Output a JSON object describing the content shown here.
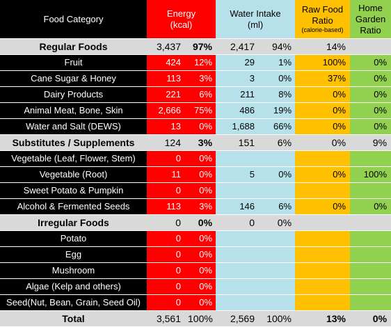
{
  "header": {
    "category": "Food Category",
    "energy_line1": "Energy",
    "energy_line2": "(kcal)",
    "water_line1": "Water Intake",
    "water_line2": "(ml)",
    "raw_line1": "Raw Food",
    "raw_line2": "Ratio",
    "raw_line3": "(calorie-based)",
    "home_line1": "Home",
    "home_line2": "Garden",
    "home_line3": "Ratio"
  },
  "rows": [
    {
      "type": "group",
      "category": "Regular Foods",
      "energy": "3,437",
      "energy_pct": "97%",
      "water": "2,417",
      "water_pct": "94%",
      "raw": "14%",
      "home": ""
    },
    {
      "type": "item",
      "category": "Fruit",
      "energy": "424",
      "energy_pct": "12%",
      "water": "29",
      "water_pct": "1%",
      "raw": "100%",
      "home": "0%"
    },
    {
      "type": "item",
      "category": "Cane Sugar & Honey",
      "energy": "113",
      "energy_pct": "3%",
      "water": "3",
      "water_pct": "0%",
      "raw": "37%",
      "home": "0%"
    },
    {
      "type": "item",
      "category": "Dairy Products",
      "energy": "221",
      "energy_pct": "6%",
      "water": "211",
      "water_pct": "8%",
      "raw": "0%",
      "home": "0%"
    },
    {
      "type": "item",
      "category": "Animal Meat, Bone, Skin",
      "energy": "2,666",
      "energy_pct": "75%",
      "water": "486",
      "water_pct": "19%",
      "raw": "0%",
      "home": "0%"
    },
    {
      "type": "item",
      "category": "Water and Salt (DEWS)",
      "energy": "13",
      "energy_pct": "0%",
      "water": "1,688",
      "water_pct": "66%",
      "raw": "0%",
      "home": "0%"
    },
    {
      "type": "group",
      "category": "Substitutes / Supplements",
      "energy": "124",
      "energy_pct": "3%",
      "water": "151",
      "water_pct": "6%",
      "raw": "0%",
      "home": "9%"
    },
    {
      "type": "item",
      "category": "Vegetable (Leaf, Flower, Stem)",
      "energy": "0",
      "energy_pct": "0%",
      "water": "",
      "water_pct": "",
      "raw": "",
      "home": ""
    },
    {
      "type": "item",
      "category": "Vegetable (Root)",
      "energy": "11",
      "energy_pct": "0%",
      "water": "5",
      "water_pct": "0%",
      "raw": "0%",
      "home": "100%"
    },
    {
      "type": "item",
      "category": "Sweet Potato & Pumpkin",
      "energy": "0",
      "energy_pct": "0%",
      "water": "",
      "water_pct": "",
      "raw": "",
      "home": ""
    },
    {
      "type": "item",
      "category": "Alcohol & Fermented Seeds",
      "energy": "113",
      "energy_pct": "3%",
      "water": "146",
      "water_pct": "6%",
      "raw": "0%",
      "home": "0%"
    },
    {
      "type": "group",
      "category": "Irregular Foods",
      "energy": "0",
      "energy_pct": "0%",
      "water": "0",
      "water_pct": "0%",
      "raw": "",
      "home": ""
    },
    {
      "type": "item",
      "category": "Potato",
      "energy": "0",
      "energy_pct": "0%",
      "water": "",
      "water_pct": "",
      "raw": "",
      "home": ""
    },
    {
      "type": "item",
      "category": "Egg",
      "energy": "0",
      "energy_pct": "0%",
      "water": "",
      "water_pct": "",
      "raw": "",
      "home": ""
    },
    {
      "type": "item",
      "category": "Mushroom",
      "energy": "0",
      "energy_pct": "0%",
      "water": "",
      "water_pct": "",
      "raw": "",
      "home": ""
    },
    {
      "type": "item",
      "category": "Algae (Kelp and others)",
      "energy": "0",
      "energy_pct": "0%",
      "water": "",
      "water_pct": "",
      "raw": "",
      "home": ""
    },
    {
      "type": "item",
      "category": "Seed(Nut, Bean, Grain, Seed Oil)",
      "energy": "0",
      "energy_pct": "0%",
      "water": "",
      "water_pct": "",
      "raw": "",
      "home": ""
    },
    {
      "type": "total",
      "category": "Total",
      "energy": "3,561",
      "energy_pct": "100%",
      "water": "2,569",
      "water_pct": "100%",
      "raw": "13%",
      "home": "0%"
    }
  ],
  "colors": {
    "category_bg": "#000000",
    "energy_bg": "#ff0000",
    "water_bg": "#b7e1ea",
    "raw_bg": "#ffc000",
    "home_bg": "#92d050",
    "group_bg": "#d9d9d9"
  }
}
